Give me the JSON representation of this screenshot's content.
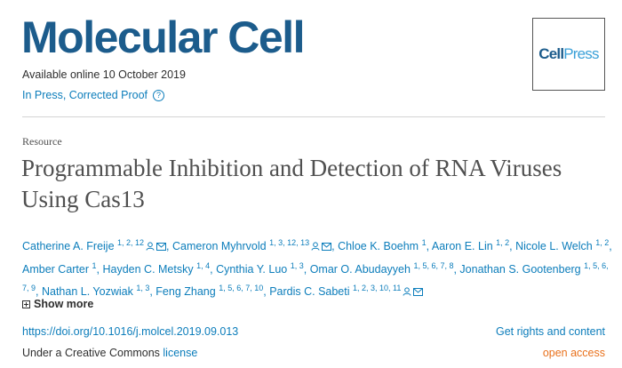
{
  "journal": {
    "title": "Molecular Cell",
    "available": "Available online 10 October 2019",
    "in_press": "In Press, Corrected Proof",
    "help_glyph": "?",
    "logo_cell": "Cell",
    "logo_press": "Press"
  },
  "article": {
    "type": "Resource",
    "title": "Programmable Inhibition and Detection of RNA Viruses Using Cas13"
  },
  "authors": [
    {
      "name": "Catherine A. Freije",
      "sup": "1, 2, 12",
      "icons": true,
      "sep": ", "
    },
    {
      "name": "Cameron Myhrvold",
      "sup": "1, 3, 12, 13",
      "icons": true,
      "sep": ", "
    },
    {
      "name": "Chloe K. Boehm",
      "sup": "1",
      "icons": false,
      "sep": ", "
    },
    {
      "name": "Aaron E. Lin",
      "sup": "1, 2",
      "icons": false,
      "sep": ", "
    },
    {
      "name": "Nicole L. Welch",
      "sup": "1, 2",
      "icons": false,
      "sep": ", "
    },
    {
      "name": "Amber Carter",
      "sup": "1",
      "icons": false,
      "sep": ", "
    },
    {
      "name": "Hayden C. Metsky",
      "sup": "1, 4",
      "icons": false,
      "sep": ", "
    },
    {
      "name": "Cynthia Y. Luo",
      "sup": "1, 3",
      "icons": false,
      "sep": ", "
    },
    {
      "name": "Omar O. Abudayyeh",
      "sup": "1, 5, 6, 7, 8",
      "icons": false,
      "sep": ", "
    },
    {
      "name": "Jonathan S. Gootenberg",
      "sup": "1, 5, 6, 7, 9",
      "icons": false,
      "sep": ", "
    },
    {
      "name": "Nathan L. Yozwiak",
      "sup": "1, 3",
      "icons": false,
      "sep": ", "
    },
    {
      "name": "Feng Zhang",
      "sup": "1, 5, 6, 7, 10",
      "icons": false,
      "sep": ", "
    },
    {
      "name": "Pardis C. Sabeti",
      "sup": "1, 2, 3, 10, 11",
      "icons": true,
      "sep": ""
    }
  ],
  "actions": {
    "show_more": "Show more",
    "doi": "https://doi.org/10.1016/j.molcel.2019.09.013",
    "rights": "Get rights and content",
    "license_prefix": "Under a Creative Commons",
    "license_link": "license",
    "open_access": "open access"
  },
  "colors": {
    "journal_blue": "#1c5c8c",
    "link_blue": "#0c7dbb",
    "open_access_orange": "#e9711c"
  }
}
